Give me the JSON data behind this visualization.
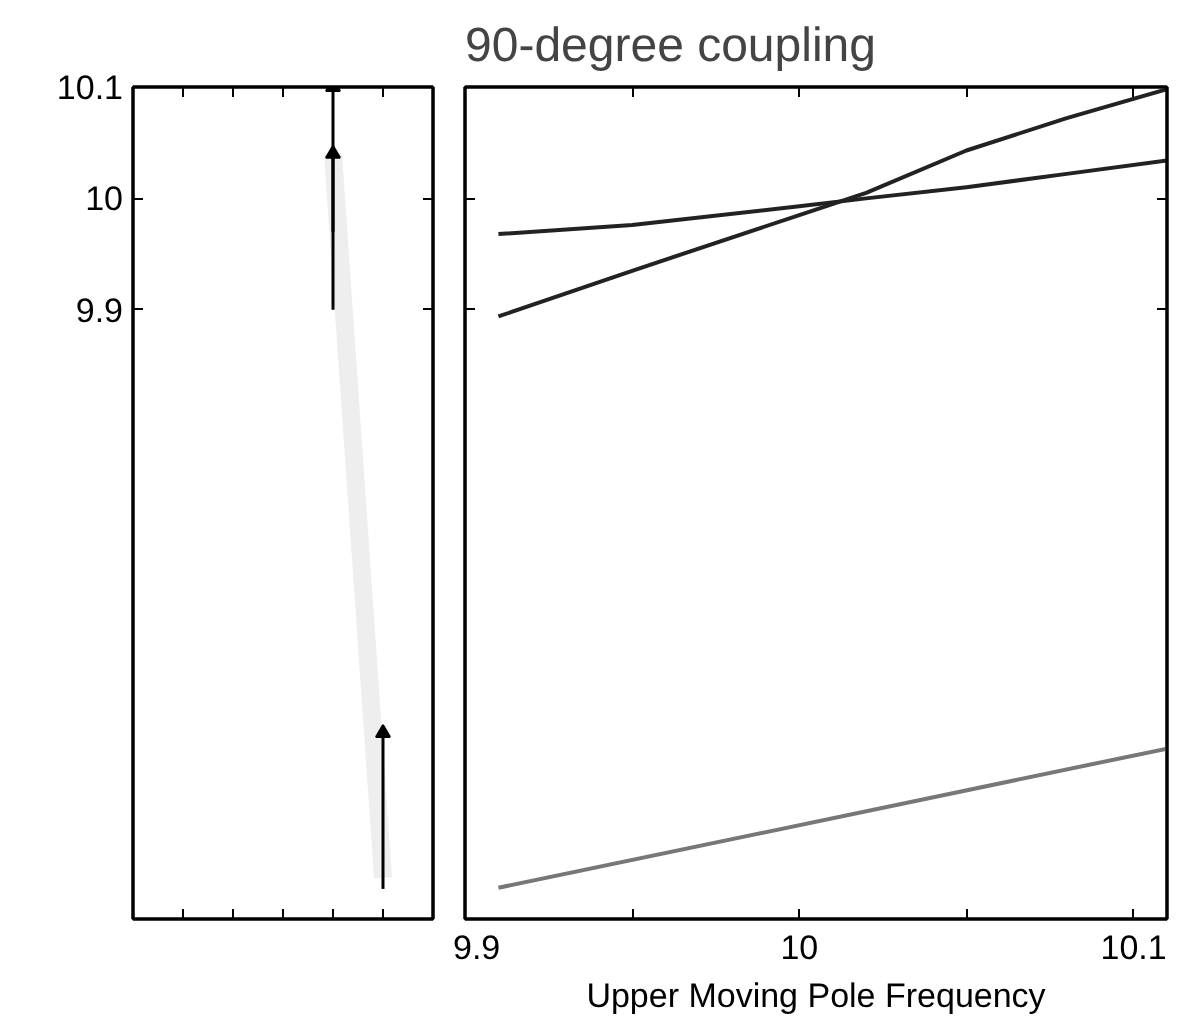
{
  "chart_data": [
    {
      "type": "line",
      "categories": [
        null,
        null,
        null,
        null,
        null,
        null,
        null
      ],
      "ylim": [
        9.353,
        10.1
      ],
      "yticks": [
        9.9,
        10,
        10.1
      ],
      "tick_labels": "y",
      "grid": false,
      "series": [
        {
          "color": "#eeeeee",
          "values": [
            null,
            null,
            null,
            null,
            10.04,
            9.39,
            null
          ]
        },
        {
          "type": "scatter",
          "color": "#000000",
          "marker": "triangle",
          "values": [
            null,
            null,
            null,
            null,
            10.1,
            9.52,
            null
          ],
          "errors": [
            null,
            null,
            null,
            null,
            [
              9.9,
              10.1
            ],
            [
              9.38,
              9.52
            ],
            null
          ]
        },
        {
          "type": "scatter",
          "color": "#000000",
          "marker": "triangle",
          "values": [
            null,
            null,
            null,
            null,
            10.04,
            null,
            null
          ],
          "errors": [
            null,
            null,
            null,
            null,
            [
              9.97,
              10.04
            ],
            null,
            null
          ]
        }
      ]
    },
    {
      "type": "line",
      "title": "90-degree coupling",
      "xlabel": "Upper Moving Pole Frequency",
      "xlim": [
        9.9,
        10.11
      ],
      "xticks": [
        9.9,
        {
          "value": 9.95,
          "label": null
        },
        10,
        {
          "value": 10.05,
          "label": null
        },
        10.1
      ],
      "ylim": [
        9.353,
        10.1
      ],
      "yticks": [
        {
          "value": 9.9,
          "label": null
        },
        {
          "value": 10,
          "label": null
        },
        {
          "value": 10.1,
          "label": null
        }
      ],
      "tick_labels": "x",
      "grid": false,
      "line_style": "solid",
      "series": [
        {
          "color": "#222222",
          "x": [
            9.91,
            9.95,
            10.0,
            10.02,
            10.05,
            10.08,
            10.11
          ],
          "values": [
            9.968,
            9.976,
            9.993,
            10.0,
            10.01,
            10.022,
            10.034
          ]
        },
        {
          "color": "#222222",
          "x": [
            9.91,
            9.95,
            10.0,
            10.02,
            10.05,
            10.08,
            10.11
          ],
          "values": [
            9.894,
            9.935,
            9.985,
            10.005,
            10.043,
            10.072,
            10.098
          ]
        },
        {
          "color": "#777777",
          "x": [
            9.91,
            10.11
          ],
          "values": [
            9.381,
            9.506
          ]
        }
      ]
    }
  ]
}
